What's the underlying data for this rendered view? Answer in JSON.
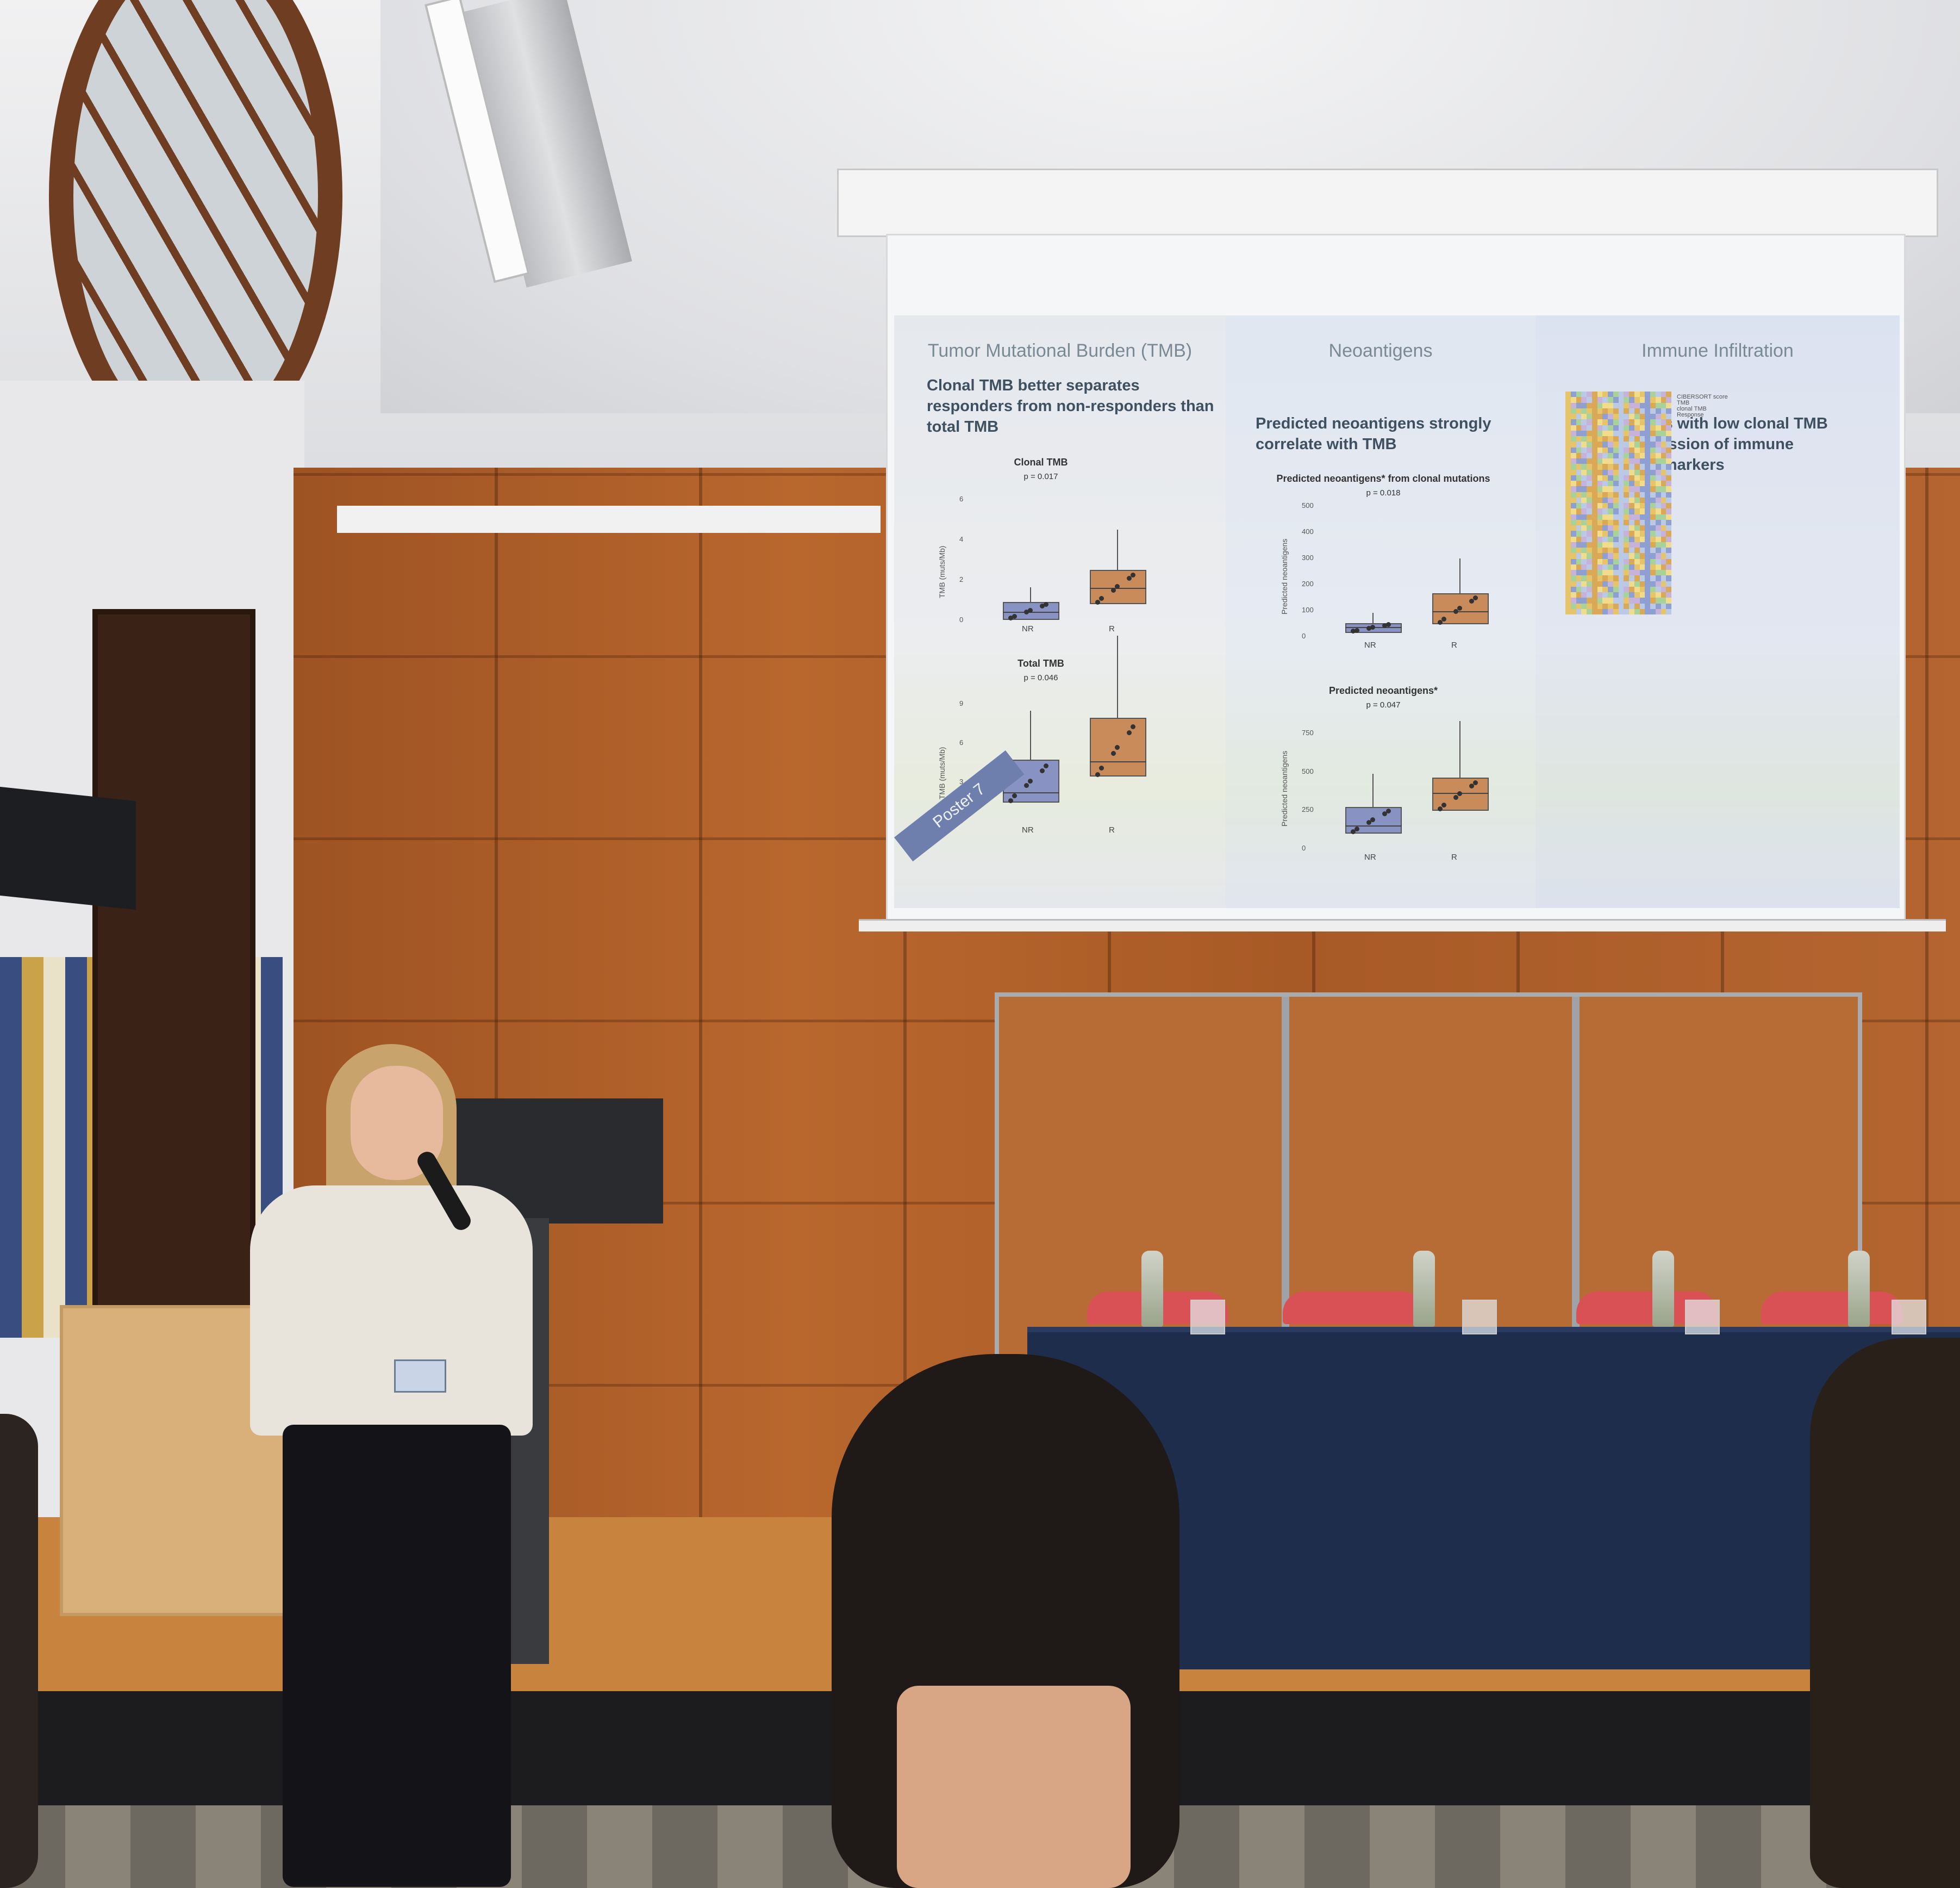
{
  "slide": {
    "tag": "Poster 7",
    "sections": [
      {
        "header": "Tumor Mutational Burden (TMB)",
        "subtitle": "Clonal TMB better separates responders from non-responders than total TMB"
      },
      {
        "header": "Neoantigens",
        "subtitle": "Predicted neoantigens strongly correlate with TMB"
      },
      {
        "header": "Immune Infiltration",
        "subtitle": "Responders with low clonal TMB show expression of immune infiltration markers"
      }
    ],
    "heatmap_labels": [
      "CIBERSORT score",
      "TMB",
      "clonal TMB",
      "Response"
    ]
  },
  "chart_data": [
    {
      "type": "box",
      "title": "Clonal TMB",
      "pvalue": "p = 0.017",
      "ylabel": "TMB (muts/Mb)",
      "categories": [
        "NR",
        "R"
      ],
      "yticks": [
        "0",
        "2",
        "4",
        "6"
      ],
      "ylim": [
        0,
        6.5
      ],
      "series": [
        {
          "values": [
            {
              "q1": 0.1,
              "median": 0.4,
              "q3": 0.9
            },
            {
              "q1": 0.9,
              "median": 1.6,
              "q3": 2.5
            }
          ]
        }
      ]
    },
    {
      "type": "box",
      "title": "Total TMB",
      "pvalue": "p = 0.046",
      "ylabel": "TMB (muts/Mb)",
      "categories": [
        "NR",
        "R"
      ],
      "yticks": [
        "0",
        "3",
        "6",
        "9"
      ],
      "ylim": [
        0,
        10
      ],
      "series": [
        {
          "values": [
            {
              "q1": 1.6,
              "median": 2.2,
              "q3": 4.7
            },
            {
              "q1": 3.6,
              "median": 4.6,
              "q3": 7.9
            }
          ]
        }
      ]
    },
    {
      "type": "box",
      "title": "Predicted neoantigens* from clonal mutations",
      "pvalue": "p = 0.018",
      "ylabel": "Predicted neoantigens",
      "categories": [
        "NR",
        "R"
      ],
      "yticks": [
        "0",
        "100",
        "200",
        "300",
        "400",
        "500"
      ],
      "ylim": [
        0,
        500
      ],
      "series": [
        {
          "values": [
            {
              "q1": 20,
              "median": 35,
              "q3": 50
            },
            {
              "q1": 55,
              "median": 95,
              "q3": 165
            }
          ]
        }
      ]
    },
    {
      "type": "box",
      "title": "Predicted neoantigens*",
      "pvalue": "p = 0.047",
      "ylabel": "Predicted neoantigens",
      "categories": [
        "NR",
        "R"
      ],
      "yticks": [
        "0",
        "250",
        "500",
        "750"
      ],
      "ylim": [
        0,
        850
      ],
      "series": [
        {
          "values": [
            {
              "q1": 110,
              "median": 150,
              "q3": 270
            },
            {
              "q1": 260,
              "median": 360,
              "q3": 460
            }
          ]
        }
      ]
    }
  ]
}
